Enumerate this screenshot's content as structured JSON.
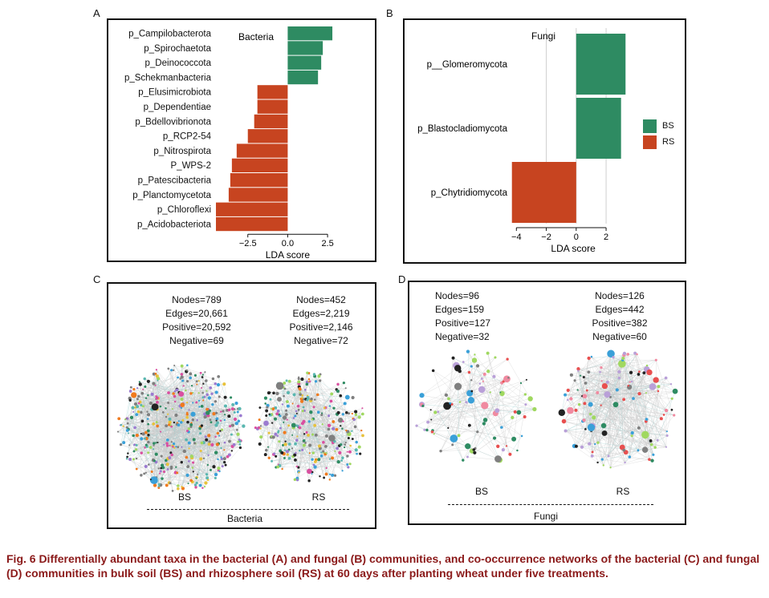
{
  "colors": {
    "bs": "#2e8b62",
    "rs": "#c74420",
    "caption": "#8b1a1a"
  },
  "panels": {
    "a": {
      "letter": "A"
    },
    "b": {
      "letter": "B"
    },
    "c": {
      "letter": "C"
    },
    "d": {
      "letter": "D"
    }
  },
  "chart_data": [
    {
      "type": "bar",
      "orientation": "horizontal",
      "panel": "A",
      "title": "Bacteria",
      "xlabel": "LDA score",
      "xlim": [
        -4.5,
        3.2
      ],
      "xticks": [
        "−2.5",
        "0.0",
        "2.5"
      ],
      "xtick_values": [
        -2.5,
        0,
        2.5
      ],
      "categories": [
        "p_Campilobacterota",
        "p_Spirochaetota",
        "p_Deinococcota",
        "p_Schekmanbacteria",
        "p_Elusimicrobiota",
        "p_Dependentiae",
        "p_Bdellovibrionota",
        "p_RCP2-54",
        "p_Nitrospirota",
        "P_WPS-2",
        "p_Patescibacteria",
        "p_Planctomycetota",
        "p_Chloroflexi",
        "p_Acidobacteriota"
      ],
      "values": [
        2.8,
        2.2,
        2.1,
        1.9,
        -1.9,
        -1.9,
        -2.1,
        -2.5,
        -3.2,
        -3.5,
        -3.6,
        -3.7,
        -4.5,
        -4.5
      ],
      "groups": [
        "BS",
        "BS",
        "BS",
        "BS",
        "RS",
        "RS",
        "RS",
        "RS",
        "RS",
        "RS",
        "RS",
        "RS",
        "RS",
        "RS"
      ]
    },
    {
      "type": "bar",
      "orientation": "horizontal",
      "panel": "B",
      "title": "Fungi",
      "xlabel": "LDA score",
      "xlim": [
        -4.5,
        3.5
      ],
      "xticks": [
        "−4",
        "−2",
        "0",
        "2"
      ],
      "xtick_values": [
        -4,
        -2,
        0,
        2
      ],
      "gridlines": [
        -2,
        0,
        2
      ],
      "categories": [
        "p__Glomeromycota",
        "p_Blastocladiomycota",
        "p_Chytridiomycota"
      ],
      "values": [
        3.3,
        3.0,
        -4.3
      ],
      "groups": [
        "BS",
        "BS",
        "RS"
      ],
      "legend": [
        "BS",
        "RS"
      ]
    }
  ],
  "networks": {
    "bacteria": {
      "bs": {
        "stats": [
          "Nodes=789",
          "Edges=20,661",
          "Positive=20,592",
          "Negative=69"
        ],
        "label": "BS"
      },
      "rs": {
        "stats": [
          "Nodes=452",
          "Edges=2,219",
          "Positive=2,146",
          "Negative=72"
        ],
        "label": "RS"
      },
      "kingdom": "Bacteria"
    },
    "fungi": {
      "bs": {
        "stats": [
          "Nodes=96",
          "Edges=159",
          "Positive=127",
          "Negative=32"
        ],
        "label": "BS"
      },
      "rs": {
        "stats": [
          "Nodes=126",
          "Edges=442",
          "Positive=382",
          "Negative=60"
        ],
        "label": "RS"
      },
      "kingdom": "Fungi"
    }
  },
  "caption": "Fig. 6  Differentially abundant taxa in the bacterial (A) and fungal (B) communities, and co-occurrence networks of the bacterial (C) and fungal (D) communities in bulk soil (BS) and rhizosphere soil (RS) at 60 days after planting wheat under five treatments."
}
